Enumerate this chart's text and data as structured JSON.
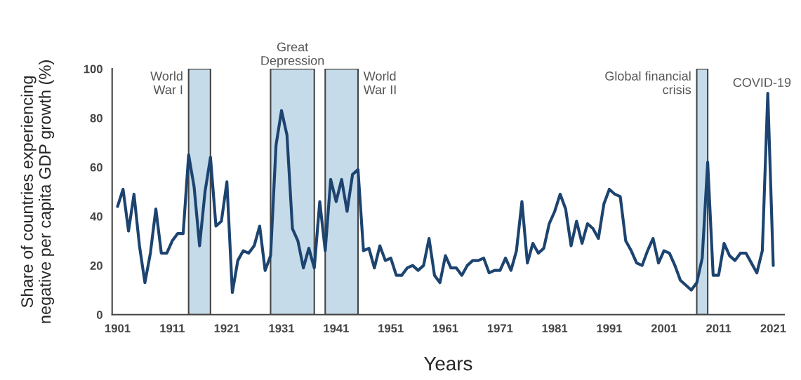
{
  "chart_data": {
    "type": "line",
    "xlabel": "Years",
    "ylabel": "Share of countries experiencing\nnegative per capita GDP growth (%)",
    "x": [
      1901,
      1902,
      1903,
      1904,
      1905,
      1906,
      1907,
      1908,
      1909,
      1910,
      1911,
      1912,
      1913,
      1914,
      1915,
      1916,
      1917,
      1918,
      1919,
      1920,
      1921,
      1922,
      1923,
      1924,
      1925,
      1926,
      1927,
      1928,
      1929,
      1930,
      1931,
      1932,
      1933,
      1934,
      1935,
      1936,
      1937,
      1938,
      1939,
      1940,
      1941,
      1942,
      1943,
      1944,
      1945,
      1946,
      1947,
      1948,
      1949,
      1950,
      1951,
      1952,
      1953,
      1954,
      1955,
      1956,
      1957,
      1958,
      1959,
      1960,
      1961,
      1962,
      1963,
      1964,
      1965,
      1966,
      1967,
      1968,
      1969,
      1970,
      1971,
      1972,
      1973,
      1974,
      1975,
      1976,
      1977,
      1978,
      1979,
      1980,
      1981,
      1982,
      1983,
      1984,
      1985,
      1986,
      1987,
      1988,
      1989,
      1990,
      1991,
      1992,
      1993,
      1994,
      1995,
      1996,
      1997,
      1998,
      1999,
      2000,
      2001,
      2002,
      2003,
      2004,
      2005,
      2006,
      2007,
      2008,
      2009,
      2010,
      2011,
      2012,
      2013,
      2014,
      2015,
      2016,
      2017,
      2018,
      2019,
      2020,
      2021
    ],
    "series": [
      {
        "color": "#1d4470",
        "values": [
          44,
          51,
          34,
          49,
          28,
          13,
          25,
          43,
          25,
          25,
          30,
          33,
          33,
          65,
          52,
          28,
          50,
          64,
          36,
          38,
          54,
          9,
          22,
          26,
          25,
          28,
          36,
          18,
          24,
          69,
          83,
          73,
          35,
          30,
          19,
          27,
          19,
          46,
          26,
          55,
          46,
          55,
          42,
          57,
          59,
          26,
          27,
          19,
          28,
          22,
          23,
          16,
          16,
          19,
          20,
          18,
          20,
          31,
          16,
          13,
          24,
          19,
          19,
          16,
          20,
          22,
          22,
          23,
          17,
          18,
          18,
          23,
          18,
          26,
          46,
          21,
          29,
          25,
          27,
          37,
          42,
          49,
          43,
          28,
          38,
          29,
          37,
          35,
          31,
          45,
          51,
          49,
          48,
          30,
          26,
          21,
          20,
          26,
          31,
          21,
          26,
          25,
          20,
          14,
          12,
          10,
          13,
          23,
          62,
          16,
          16,
          29,
          24,
          22,
          25,
          25,
          21,
          17,
          26,
          90,
          20
        ]
      }
    ],
    "xlim": [
      1900,
      2023
    ],
    "ylim": [
      0,
      100
    ],
    "xticks": [
      1901,
      1911,
      1921,
      1931,
      1941,
      1951,
      1961,
      1971,
      1981,
      1991,
      2001,
      2011,
      2021
    ],
    "yticks": [
      0,
      20,
      40,
      60,
      80,
      100
    ],
    "bands": [
      {
        "axis": "x",
        "from": 1914,
        "to": 1918,
        "label": "World\nWar I",
        "color": "#c6dbe9"
      },
      {
        "axis": "x",
        "from": 1929,
        "to": 1937,
        "label": "Great\nDepression",
        "color": "#c6dbe9"
      },
      {
        "axis": "x",
        "from": 1939,
        "to": 1945,
        "label": "World\nWar II",
        "color": "#c6dbe9"
      },
      {
        "axis": "x",
        "from": 2007,
        "to": 2009,
        "label": "Global financial\ncrisis",
        "color": "#c6dbe9"
      }
    ],
    "annotations": [
      {
        "text": "COVID-19",
        "x": 2020,
        "y": 90
      }
    ],
    "grid": false,
    "legend": false,
    "marker": "none",
    "line_style": "solid"
  }
}
